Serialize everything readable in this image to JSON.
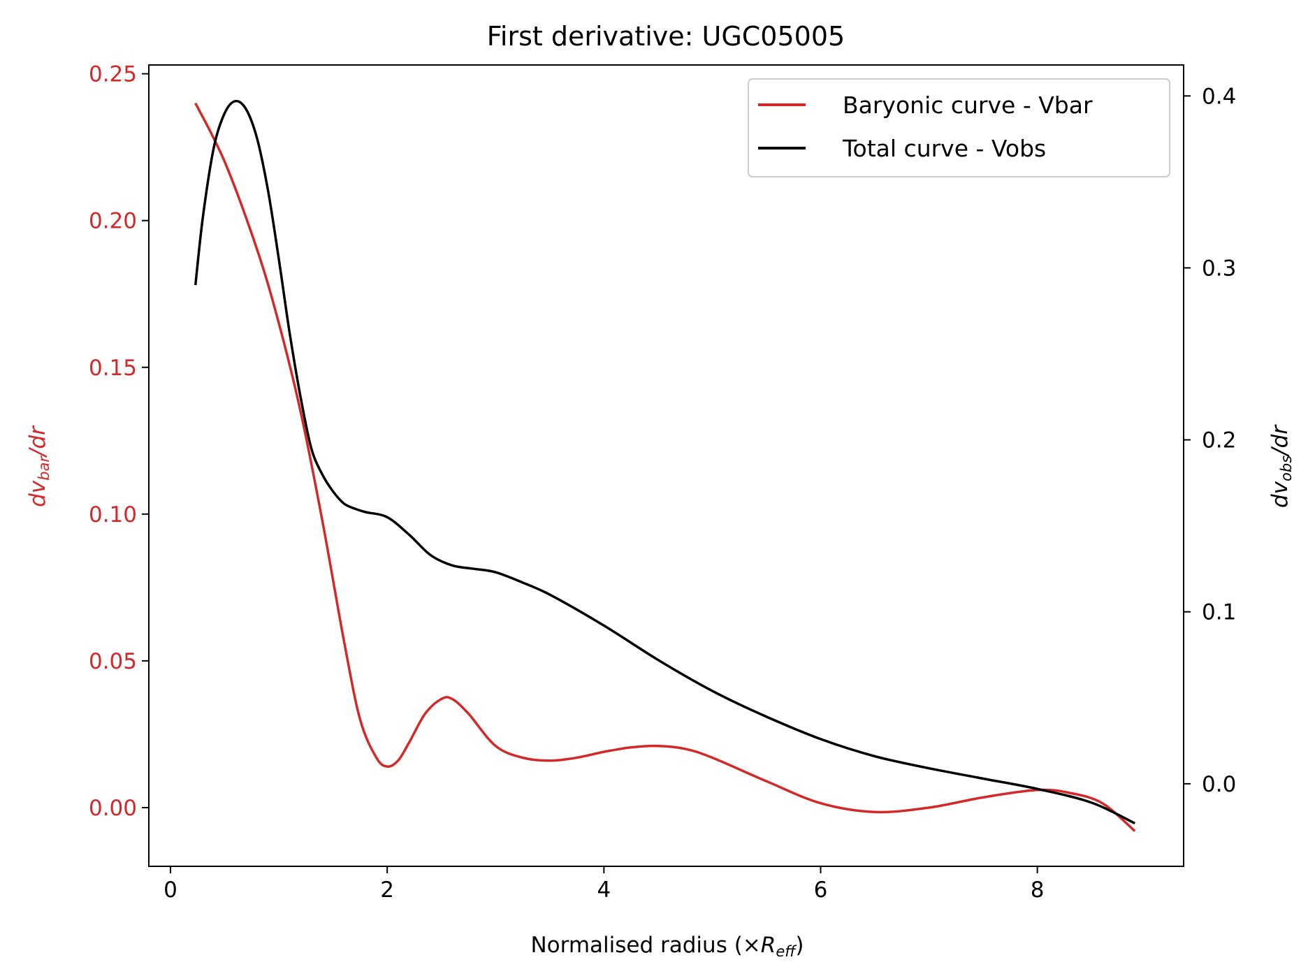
{
  "chart_data": {
    "type": "line",
    "title": "First derivative: UGC05005",
    "xlabel": {
      "main": "Normalised radius (×",
      "var": "R",
      "sub": "eff",
      "close": ")"
    },
    "ylabel_left": {
      "pre": "dv",
      "sub": "bar",
      "post": "/dr"
    },
    "ylabel_right": {
      "pre": "dv",
      "sub": "obs",
      "post": "/dr"
    },
    "xlim": [
      -0.2,
      9.35
    ],
    "ylim_left": [
      -0.02,
      0.253
    ],
    "ylim_right": [
      -0.048,
      0.418
    ],
    "x_ticks": [
      0,
      2,
      4,
      6,
      8
    ],
    "x_tick_labels": [
      "0",
      "2",
      "4",
      "6",
      "8"
    ],
    "y_left_ticks": [
      0.0,
      0.05,
      0.1,
      0.15,
      0.2,
      0.25
    ],
    "y_left_tick_labels": [
      "0.00",
      "0.05",
      "0.10",
      "0.15",
      "0.20",
      "0.25"
    ],
    "y_right_ticks": [
      0.0,
      0.1,
      0.2,
      0.3,
      0.4
    ],
    "y_right_tick_labels": [
      "0.0",
      "0.1",
      "0.2",
      "0.3",
      "0.4"
    ],
    "legend_position": "top-right",
    "colors": {
      "vbar": "#d62728",
      "vobs": "#000000",
      "left_axis": "#d62728",
      "right_axis": "#000000"
    },
    "series": [
      {
        "name": "Baryonic curve - Vbar",
        "axis": "left",
        "color": "#d62728",
        "x": [
          0.23,
          0.5,
          0.8,
          1.0,
          1.2,
          1.4,
          1.6,
          1.75,
          1.9,
          2.0,
          2.1,
          2.2,
          2.35,
          2.5,
          2.6,
          2.75,
          3.0,
          3.25,
          3.5,
          3.75,
          4.0,
          4.25,
          4.5,
          4.75,
          5.0,
          5.5,
          6.0,
          6.5,
          7.0,
          7.5,
          8.0,
          8.3,
          8.6,
          8.9
        ],
        "y": [
          0.24,
          0.22,
          0.19,
          0.165,
          0.135,
          0.098,
          0.057,
          0.03,
          0.017,
          0.014,
          0.016,
          0.022,
          0.032,
          0.037,
          0.037,
          0.032,
          0.021,
          0.017,
          0.016,
          0.017,
          0.019,
          0.0205,
          0.021,
          0.02,
          0.017,
          0.009,
          0.0015,
          -0.0015,
          0.0,
          0.0035,
          0.006,
          0.005,
          0.0015,
          -0.008
        ]
      },
      {
        "name": "Total curve - Vobs",
        "axis": "right",
        "color": "#000000",
        "x": [
          0.23,
          0.3,
          0.4,
          0.5,
          0.6,
          0.7,
          0.8,
          0.9,
          1.0,
          1.1,
          1.2,
          1.3,
          1.4,
          1.5,
          1.6,
          1.7,
          1.8,
          2.0,
          2.2,
          2.4,
          2.6,
          2.8,
          3.0,
          3.25,
          3.5,
          4.0,
          4.5,
          5.0,
          5.5,
          6.0,
          6.5,
          7.0,
          7.5,
          8.0,
          8.5,
          8.9
        ],
        "y": [
          0.29,
          0.33,
          0.37,
          0.39,
          0.397,
          0.392,
          0.375,
          0.345,
          0.305,
          0.262,
          0.225,
          0.195,
          0.18,
          0.17,
          0.163,
          0.16,
          0.158,
          0.155,
          0.145,
          0.133,
          0.127,
          0.125,
          0.123,
          0.117,
          0.11,
          0.092,
          0.072,
          0.054,
          0.039,
          0.026,
          0.016,
          0.009,
          0.003,
          -0.003,
          -0.011,
          -0.023
        ]
      }
    ]
  }
}
